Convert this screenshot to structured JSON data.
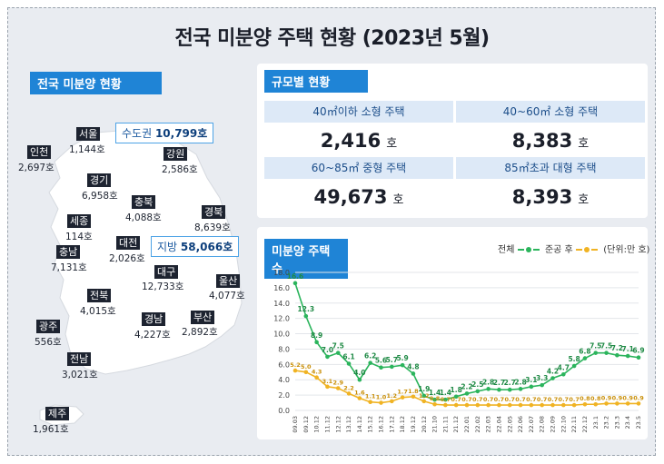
{
  "title": "전국 미분양 주택 현황 (2023년 5월)",
  "map": {
    "label": "전국 미분양 현황",
    "regions": [
      {
        "name": "서울",
        "value": "1,144호"
      },
      {
        "name": "인천",
        "value": "2,697호"
      },
      {
        "name": "경기",
        "value": "6,958호"
      },
      {
        "name": "강원",
        "value": "2,586호"
      },
      {
        "name": "충북",
        "value": "4,088호"
      },
      {
        "name": "경북",
        "value": "8,639호"
      },
      {
        "name": "세종",
        "value": "114호"
      },
      {
        "name": "대전",
        "value": "2,026호"
      },
      {
        "name": "충남",
        "value": "7,131호"
      },
      {
        "name": "대구",
        "value": "12,733호"
      },
      {
        "name": "울산",
        "value": "4,077호"
      },
      {
        "name": "전북",
        "value": "4,015호"
      },
      {
        "name": "경남",
        "value": "4,227호"
      },
      {
        "name": "부산",
        "value": "2,892호"
      },
      {
        "name": "광주",
        "value": "556호"
      },
      {
        "name": "전남",
        "value": "3,021호"
      },
      {
        "name": "제주",
        "value": "1,961호"
      }
    ],
    "capital": {
      "label": "수도권",
      "value": "10,799호"
    },
    "local": {
      "label": "지방",
      "value": "58,066호"
    }
  },
  "by_size": {
    "label": "규모별 현황",
    "cells": [
      {
        "header": "40㎡이하 소형 주택",
        "value": "2,416",
        "unit": "호"
      },
      {
        "header": "40~60㎡ 소형 주택",
        "value": "8,383",
        "unit": "호"
      },
      {
        "header": "60~85㎡ 중형 주택",
        "value": "49,673",
        "unit": "호"
      },
      {
        "header": "85㎡초과 대형 주택",
        "value": "8,393",
        "unit": "호"
      }
    ]
  },
  "chart_data": {
    "type": "line",
    "title": "미분양 주택수",
    "unit_note": "(단위:만 호)",
    "ylim": [
      0,
      18
    ],
    "yticks": [
      0.0,
      2.0,
      4.0,
      6.0,
      8.0,
      10.0,
      12.0,
      14.0,
      16.0,
      18.0
    ],
    "grid": true,
    "legend": "top-right",
    "x": [
      "09.03",
      "09.12",
      "10.12",
      "11.12",
      "12.12",
      "13.12",
      "14.12",
      "15.12",
      "16.12",
      "17.12",
      "18.12",
      "19.12",
      "20.12",
      "21.10",
      "21.11",
      "21.12",
      "22.01",
      "22.02",
      "22.03",
      "22.04",
      "22.05",
      "22.06",
      "22.07",
      "22.08",
      "22.09",
      "22.10",
      "22.11",
      "22.12",
      "23.1",
      "23.2",
      "23.3",
      "23.4",
      "23.5"
    ],
    "series": [
      {
        "name": "전체",
        "color": "#2bb45c",
        "values": [
          16.6,
          12.3,
          8.9,
          7.0,
          7.5,
          6.1,
          4.0,
          6.2,
          5.6,
          5.7,
          5.9,
          4.8,
          1.9,
          1.4,
          1.4,
          1.8,
          2.2,
          2.5,
          2.8,
          2.7,
          2.7,
          2.8,
          3.1,
          3.3,
          4.2,
          4.7,
          5.8,
          6.8,
          7.5,
          7.5,
          7.2,
          7.1,
          6.9
        ]
      },
      {
        "name": "준공 후",
        "color": "#f0b323",
        "values": [
          5.2,
          5.0,
          4.3,
          3.1,
          2.9,
          2.2,
          1.6,
          1.1,
          1.0,
          1.2,
          1.7,
          1.8,
          1.2,
          0.8,
          0.7,
          0.7,
          0.7,
          0.7,
          0.7,
          0.7,
          0.7,
          0.7,
          0.7,
          0.7,
          0.7,
          0.7,
          0.7,
          0.8,
          0.8,
          0.9,
          0.9,
          0.9,
          0.9
        ]
      }
    ],
    "labels": {
      "total": [
        "16.6",
        "12.3",
        "8.9",
        "7.0",
        "7.5",
        "6.1",
        "4.0",
        "6.2",
        "5.6",
        "5.7",
        "5.9",
        "4.8",
        "1.9",
        "1.4",
        "1.4",
        "1.8",
        "2.2",
        "2.5",
        "2.8",
        "2.7",
        "2.7",
        "2.8",
        "3.1",
        "3.3",
        "4.2",
        "4.7",
        "5.8",
        "6.8",
        "7.5",
        "7.5",
        "7.2",
        "7.1",
        "6.9"
      ],
      "after": [
        "5.2",
        "5.0",
        "4.3",
        "3.1",
        "2.9",
        "2.2",
        "1.6",
        "1.1",
        "1.0",
        "1.2",
        "1.7",
        "1.8",
        "1.2",
        "0.8",
        "0.7",
        "0.7",
        "0.7",
        "0.7",
        "0.7",
        "0.7",
        "0.7",
        "0.7",
        "0.7",
        "0.7",
        "0.7",
        "0.7",
        "0.7",
        "0.8",
        "0.8",
        "0.9",
        "0.9",
        "0.9",
        "0.9"
      ]
    }
  }
}
